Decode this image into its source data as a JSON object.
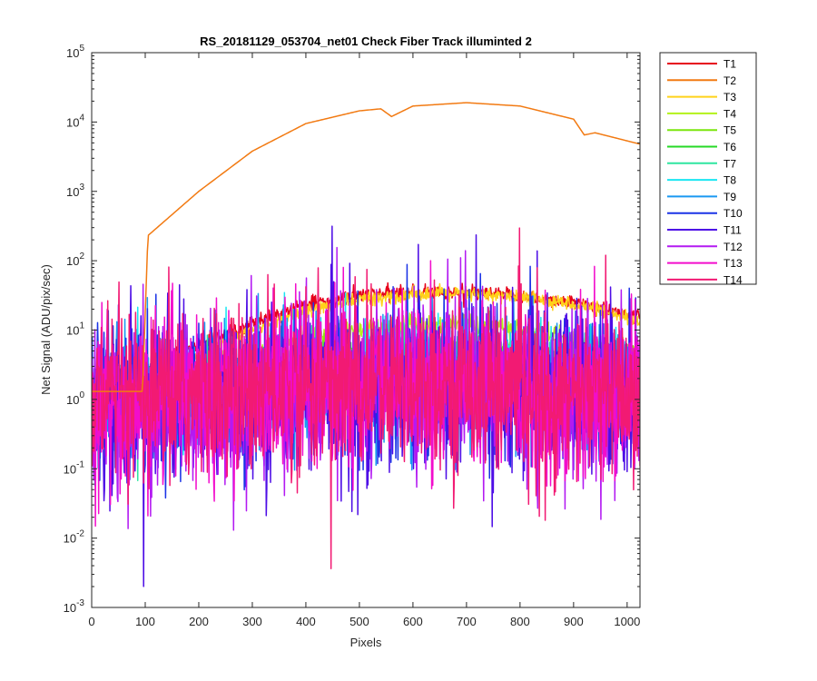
{
  "chart_data": {
    "type": "line",
    "title": "RS_20181129_053704_net01   Check Fiber     Track illuminted 2",
    "xlabel": "Pixels",
    "ylabel": "Net Signal (ADU/pix/sec)",
    "xlim": [
      0,
      1024
    ],
    "ylim": [
      0.001,
      100000
    ],
    "yscale": "log",
    "x_ticks": [
      "0",
      "100",
      "200",
      "300",
      "400",
      "500",
      "600",
      "700",
      "800",
      "900",
      "1000"
    ],
    "y_tick_bases": [
      "10",
      "10",
      "10",
      "10",
      "10",
      "10",
      "10",
      "10",
      "10"
    ],
    "y_tick_exponents": [
      "-3",
      "-2",
      "-1",
      "0",
      "1",
      "2",
      "3",
      "4",
      "5"
    ],
    "grid": false,
    "legend_position": "outside-top-right",
    "series": [
      {
        "name": "T1",
        "color": "#e6001a",
        "profile": {
          "x": [
            0,
            100,
            200,
            300,
            400,
            500,
            600,
            700,
            800,
            900,
            1024
          ],
          "y": [
            2.0,
            2.6,
            6.0,
            13,
            23,
            32,
            35,
            34,
            31,
            25,
            15
          ]
        },
        "noise": 0.05
      },
      {
        "name": "T2",
        "color": "#f27a12",
        "profile": {
          "x": [
            0,
            95,
            105,
            200,
            300,
            400,
            500,
            540,
            560,
            600,
            700,
            800,
            900,
            920,
            940,
            1024
          ],
          "y": [
            1.3,
            1.3,
            230,
            1000,
            3800,
            9500,
            14500,
            15500,
            12000,
            17000,
            19000,
            17000,
            11000,
            6500,
            7000,
            4800
          ]
        },
        "noise": 0.0
      },
      {
        "name": "T3",
        "color": "#ffd21a",
        "profile": {
          "x": [
            0,
            100,
            200,
            300,
            400,
            500,
            600,
            650,
            700,
            800,
            900,
            1024
          ],
          "y": [
            1.4,
            1.8,
            4.5,
            10,
            19,
            28,
            33,
            34,
            33,
            30,
            24,
            12.5
          ]
        },
        "noise": 0.05
      },
      {
        "name": "T4",
        "color": "#b3f21a",
        "profile": {
          "x": [
            0,
            100,
            200,
            300,
            400,
            500,
            600,
            650,
            700,
            800,
            900,
            1024
          ],
          "y": [
            1.2,
            1.5,
            2.4,
            4.5,
            7.5,
            10.5,
            12,
            12,
            11.8,
            10,
            7.5,
            4.3
          ]
        },
        "noise": 0.08
      },
      {
        "name": "T5",
        "color": "#7ae60d",
        "profile": {
          "x": [
            0,
            100,
            200,
            300,
            400,
            500,
            600,
            700,
            800,
            900,
            1024
          ],
          "y": [
            1.1,
            1.3,
            1.8,
            2.8,
            4.0,
            5.2,
            5.8,
            5.6,
            4.8,
            4.0,
            3.0
          ]
        },
        "noise": 0.12
      },
      {
        "name": "T6",
        "color": "#26d926",
        "profile": {
          "x": [
            0,
            100,
            200,
            300,
            400,
            500,
            600,
            700,
            800,
            900,
            1024
          ],
          "y": [
            1.0,
            1.2,
            1.6,
            2.3,
            3.1,
            4.0,
            4.3,
            4.2,
            3.7,
            3.1,
            2.4
          ]
        },
        "noise": 0.15
      },
      {
        "name": "T7",
        "color": "#2ee6a0",
        "profile": {
          "x": [
            0,
            100,
            200,
            300,
            400,
            500,
            600,
            700,
            800,
            900,
            1024
          ],
          "y": [
            0.9,
            1.1,
            1.4,
            1.9,
            2.5,
            3.0,
            3.2,
            3.1,
            2.8,
            2.4,
            1.9
          ]
        },
        "noise": 0.25
      },
      {
        "name": "T8",
        "color": "#1ae6f2",
        "profile": {
          "x": [
            0,
            100,
            200,
            300,
            400,
            500,
            600,
            700,
            800,
            900,
            1024
          ],
          "y": [
            0.85,
            1.0,
            1.3,
            1.7,
            2.1,
            2.5,
            2.7,
            2.6,
            2.3,
            2.0,
            1.6
          ]
        },
        "noise": 0.35
      },
      {
        "name": "T9",
        "color": "#1a99f2",
        "profile": {
          "x": [
            0,
            100,
            200,
            300,
            400,
            500,
            600,
            700,
            800,
            900,
            1024
          ],
          "y": [
            0.8,
            0.95,
            1.2,
            1.5,
            1.8,
            2.1,
            2.2,
            2.1,
            1.9,
            1.6,
            1.4
          ]
        },
        "noise": 0.45
      },
      {
        "name": "T10",
        "color": "#1a33e6",
        "profile": {
          "x": [
            0,
            100,
            200,
            300,
            400,
            500,
            600,
            700,
            800,
            900,
            1024
          ],
          "y": [
            0.8,
            0.9,
            1.1,
            1.3,
            1.6,
            1.8,
            1.9,
            1.8,
            1.6,
            1.4,
            1.2
          ]
        },
        "noise": 0.55
      },
      {
        "name": "T11",
        "color": "#4d0de6",
        "profile": {
          "x": [
            0,
            100,
            200,
            300,
            400,
            500,
            600,
            700,
            800,
            900,
            1024
          ],
          "y": [
            0.8,
            0.9,
            1.1,
            1.3,
            1.5,
            1.7,
            1.8,
            1.7,
            1.5,
            1.3,
            1.1
          ]
        },
        "noise": 0.6
      },
      {
        "name": "T12",
        "color": "#b31af2",
        "profile": {
          "x": [
            0,
            100,
            200,
            300,
            400,
            500,
            600,
            700,
            800,
            900,
            1024
          ],
          "y": [
            0.85,
            0.95,
            1.1,
            1.3,
            1.5,
            1.7,
            1.75,
            1.7,
            1.5,
            1.3,
            1.1
          ]
        },
        "noise": 0.6
      },
      {
        "name": "T13",
        "color": "#f20dcc",
        "profile": {
          "x": [
            0,
            100,
            200,
            300,
            400,
            500,
            600,
            700,
            800,
            900,
            1024
          ],
          "y": [
            0.9,
            1.0,
            1.15,
            1.35,
            1.55,
            1.7,
            1.8,
            1.7,
            1.5,
            1.3,
            1.15
          ]
        },
        "noise": 0.6
      },
      {
        "name": "T14",
        "color": "#f21a73",
        "profile": {
          "x": [
            0,
            100,
            200,
            300,
            400,
            500,
            600,
            700,
            800,
            900,
            1024
          ],
          "y": [
            0.9,
            1.0,
            1.15,
            1.35,
            1.55,
            1.7,
            1.8,
            1.7,
            1.5,
            1.3,
            1.2
          ]
        },
        "noise": 0.6
      }
    ]
  }
}
